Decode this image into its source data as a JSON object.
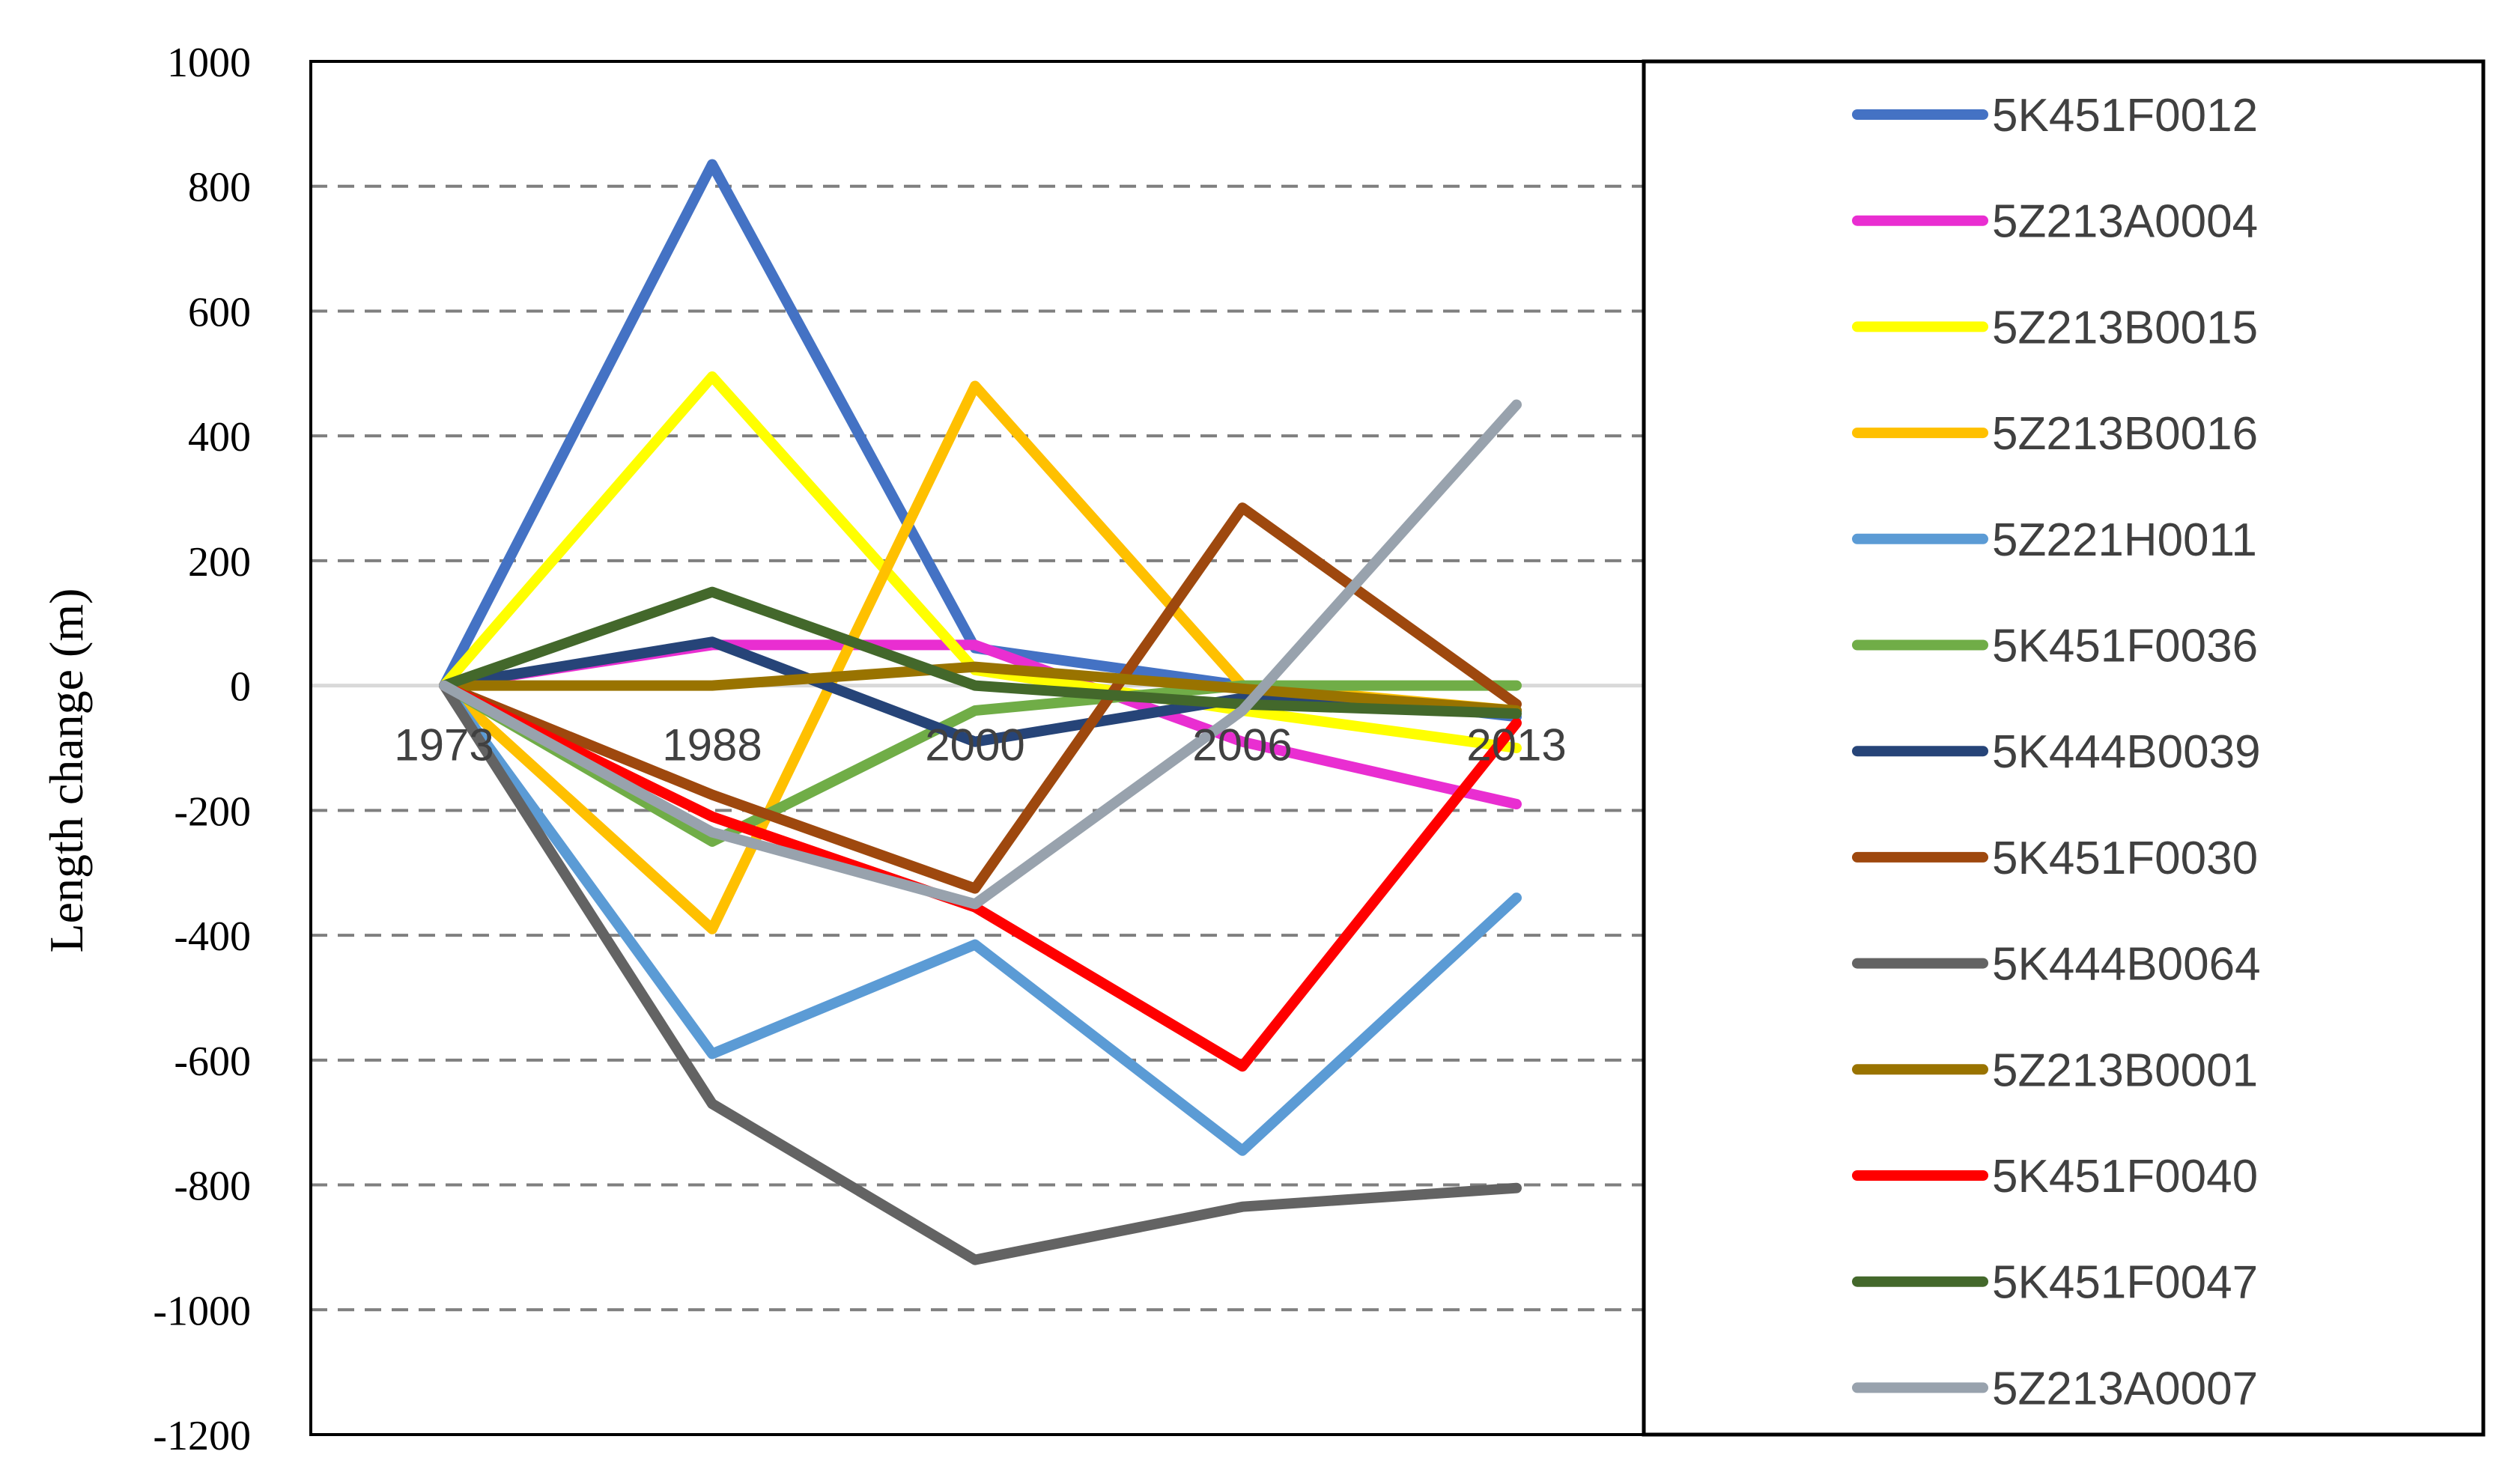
{
  "chart_data": {
    "type": "line",
    "title": "",
    "xlabel": "",
    "ylabel": "Length change (m)",
    "categories": [
      "1973",
      "1988",
      "2000",
      "2006",
      "2013"
    ],
    "ylim": [
      -1200,
      1000
    ],
    "yticks": [
      1000,
      800,
      600,
      400,
      200,
      0,
      -200,
      -400,
      -600,
      -800,
      -1000,
      -1200
    ],
    "grid": true,
    "legend_position": "right",
    "series": [
      {
        "name": "5K451F0012",
        "color": "#4472C4",
        "values": [
          0,
          835,
          60,
          0,
          -50
        ]
      },
      {
        "name": "5Z213A0004",
        "color": "#E92ED1",
        "values": [
          0,
          65,
          65,
          -90,
          -190
        ]
      },
      {
        "name": "5Z213B0015",
        "color": "#FFFF00",
        "values": [
          0,
          495,
          25,
          -40,
          -100
        ]
      },
      {
        "name": "5Z213B0016",
        "color": "#FFC000",
        "values": [
          0,
          -390,
          480,
          0,
          -40
        ]
      },
      {
        "name": "5Z221H0011",
        "color": "#5B9BD5",
        "values": [
          0,
          -590,
          -415,
          -745,
          -340
        ]
      },
      {
        "name": "5K451F0036",
        "color": "#70AD47",
        "values": [
          0,
          -250,
          -40,
          0,
          0
        ]
      },
      {
        "name": "5K444B0039",
        "color": "#264478",
        "values": [
          0,
          70,
          -90,
          -20,
          -40
        ]
      },
      {
        "name": "5K451F0030",
        "color": "#9E480E",
        "values": [
          0,
          -175,
          -325,
          285,
          -30
        ]
      },
      {
        "name": "5K444B0064",
        "color": "#636363",
        "values": [
          0,
          -670,
          -920,
          -835,
          -805
        ]
      },
      {
        "name": "5Z213B0001",
        "color": "#997300",
        "values": [
          0,
          0,
          30,
          -5,
          -40
        ]
      },
      {
        "name": "5K451F0040",
        "color": "#FF0000",
        "values": [
          0,
          -210,
          -355,
          -610,
          -60
        ]
      },
      {
        "name": "5K451F0047",
        "color": "#43682B",
        "values": [
          0,
          150,
          0,
          -30,
          -45
        ]
      },
      {
        "name": "5Z213A0007",
        "color": "#98A2AD",
        "values": [
          0,
          -235,
          -350,
          -40,
          450
        ]
      }
    ]
  }
}
